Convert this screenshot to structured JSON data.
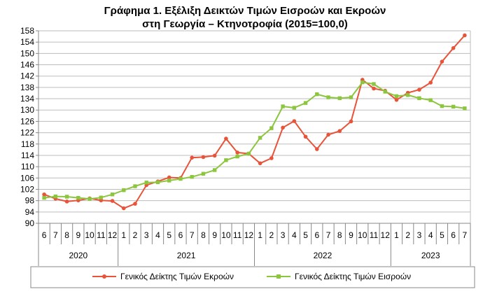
{
  "chart_data": {
    "type": "line",
    "title": "Γράφημα 1. Εξέλιξη Δεικτών Τιμών Εισροών και Εκροών",
    "subtitle": "στη Γεωργία – Κτηνοτροφία (2015=100,0)",
    "xlabel": "",
    "ylabel": "",
    "ylim": [
      90,
      158
    ],
    "yticks": [
      "90",
      "94",
      "98",
      "102",
      "106",
      "110",
      "114",
      "118",
      "122",
      "126",
      "130",
      "134",
      "138",
      "142",
      "146",
      "150",
      "154",
      "158"
    ],
    "months": [
      "6",
      "7",
      "8",
      "9",
      "10",
      "11",
      "12",
      "1",
      "2",
      "3",
      "4",
      "5",
      "6",
      "7",
      "8",
      "9",
      "10",
      "11",
      "12",
      "1",
      "2",
      "3",
      "4",
      "5",
      "6",
      "7",
      "8",
      "9",
      "10",
      "11",
      "12",
      "1",
      "2",
      "3",
      "4",
      "5",
      "6",
      "7"
    ],
    "years": [
      {
        "label": "2020",
        "start": 0,
        "end": 6
      },
      {
        "label": "2021",
        "start": 7,
        "end": 18
      },
      {
        "label": "2022",
        "start": 19,
        "end": 30
      },
      {
        "label": "2023",
        "start": 31,
        "end": 37
      }
    ],
    "grid": true,
    "legend_position": "bottom",
    "series": [
      {
        "name": "Γενικός Δείκτης Τιμών Εκροών",
        "color": "#e8533a",
        "marker": "circle",
        "values": [
          100.2,
          98.7,
          97.7,
          98.1,
          98.8,
          98.1,
          97.9,
          95.3,
          96.9,
          103.5,
          104.8,
          106.2,
          106.0,
          113.2,
          113.4,
          113.9,
          119.9,
          115.0,
          114.6,
          111.2,
          113.0,
          123.8,
          126.1,
          120.6,
          116.2,
          121.3,
          122.6,
          126.0,
          140.7,
          137.6,
          136.8,
          133.6,
          136.1,
          137.2,
          139.7,
          147.1,
          151.9,
          156.4
        ]
      },
      {
        "name": "Γενικός Δείκτης Τιμών Εισροών",
        "color": "#8cc63f",
        "marker": "square",
        "values": [
          99.0,
          99.5,
          99.4,
          99.0,
          98.6,
          99.1,
          100.2,
          101.7,
          103.1,
          104.4,
          104.5,
          105.1,
          105.7,
          106.4,
          107.5,
          108.8,
          112.3,
          113.6,
          114.6,
          120.2,
          123.6,
          131.3,
          130.8,
          132.5,
          135.6,
          134.5,
          134.2,
          134.5,
          139.8,
          139.2,
          136.5,
          134.9,
          135.3,
          134.2,
          133.5,
          131.4,
          131.2,
          130.6
        ]
      }
    ]
  }
}
